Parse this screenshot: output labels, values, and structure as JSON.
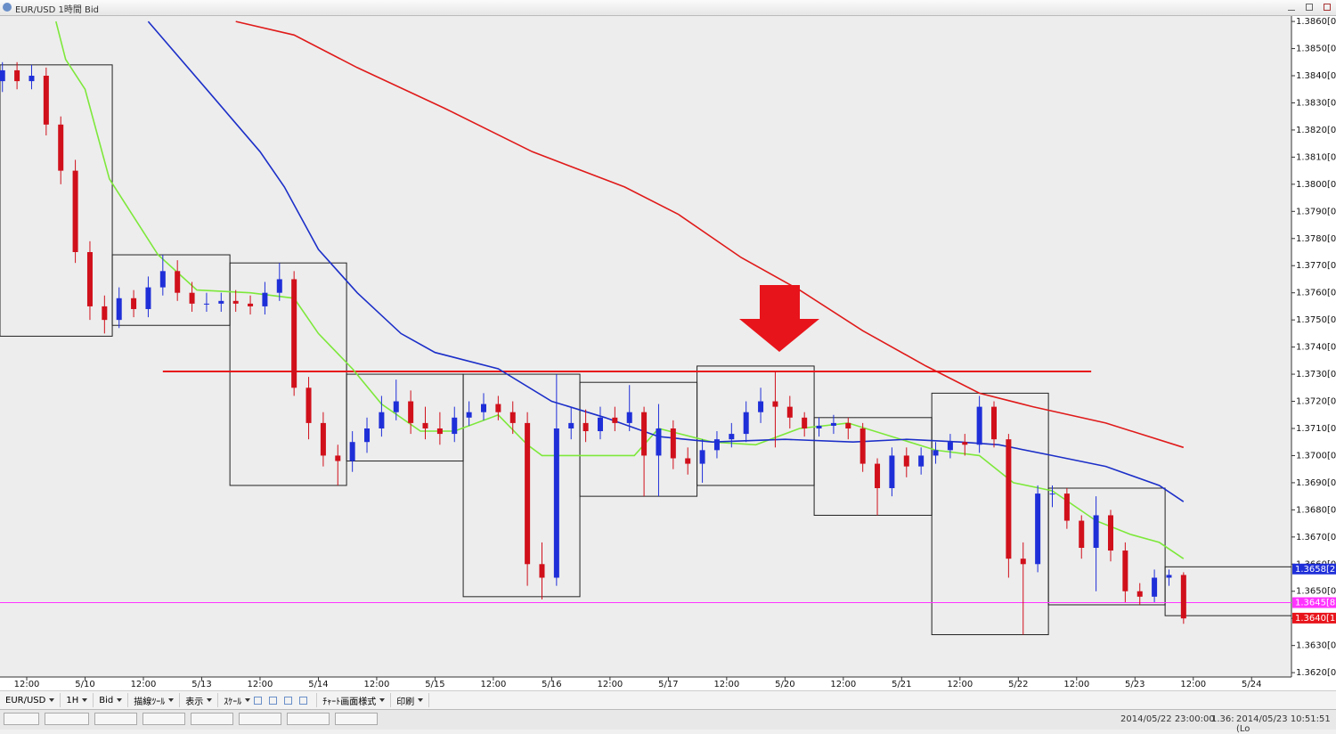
{
  "window": {
    "title": "EUR/USD 1時間 Bid",
    "toolbar": [
      "EUR/USD",
      "1H",
      "Bid",
      "描線ﾂｰﾙ",
      "表示",
      "ｽｹｰﾙ",
      "ﾁｬｰﾄ画面様式",
      "印刷"
    ],
    "status": [
      "2014/05/22 23:00:00",
      "1.36:",
      "2014/05/23 10:51:51 (Lo"
    ]
  },
  "chart_data": {
    "type": "candlestick",
    "xlim": [
      -5.5,
      260.2
    ],
    "ylim": [
      1.36184,
      1.3862
    ],
    "xticks": [
      {
        "value": 0,
        "label": "12:00"
      },
      {
        "value": 12,
        "label": "5/10"
      },
      {
        "value": 24,
        "label": "12:00"
      },
      {
        "value": 36,
        "label": "5/13"
      },
      {
        "value": 48,
        "label": "12:00"
      },
      {
        "value": 60,
        "label": "5/14"
      },
      {
        "value": 72,
        "label": "12:00"
      },
      {
        "value": 84,
        "label": "5/15"
      },
      {
        "value": 96,
        "label": "12:00"
      },
      {
        "value": 108,
        "label": "5/16"
      },
      {
        "value": 120,
        "label": "12:00"
      },
      {
        "value": 132,
        "label": "5/17"
      },
      {
        "value": 144,
        "label": "12:00"
      },
      {
        "value": 156,
        "label": "5/20"
      },
      {
        "value": 168,
        "label": "12:00"
      },
      {
        "value": 180,
        "label": "5/21"
      },
      {
        "value": 192,
        "label": "12:00"
      },
      {
        "value": 204,
        "label": "5/22"
      },
      {
        "value": 216,
        "label": "12:00"
      },
      {
        "value": 228,
        "label": "5/23"
      },
      {
        "value": 240,
        "label": "12:00"
      },
      {
        "value": 252,
        "label": "5/24"
      }
    ],
    "yticks": [
      {
        "value": 1.362,
        "label": "1.3620[0]"
      },
      {
        "value": 1.363,
        "label": "1.3630[0]"
      },
      {
        "value": 1.364,
        "label": "1.3640[0]"
      },
      {
        "value": 1.365,
        "label": "1.3650[0]"
      },
      {
        "value": 1.366,
        "label": "1.3660[0]"
      },
      {
        "value": 1.367,
        "label": "1.3670[0]"
      },
      {
        "value": 1.368,
        "label": "1.3680[0]"
      },
      {
        "value": 1.369,
        "label": "1.3690[0]"
      },
      {
        "value": 1.37,
        "label": "1.3700[0]"
      },
      {
        "value": 1.371,
        "label": "1.3710[0]"
      },
      {
        "value": 1.372,
        "label": "1.3720[0]"
      },
      {
        "value": 1.373,
        "label": "1.3730[0]"
      },
      {
        "value": 1.374,
        "label": "1.3740[0]"
      },
      {
        "value": 1.375,
        "label": "1.3750[0]"
      },
      {
        "value": 1.376,
        "label": "1.3760[0]"
      },
      {
        "value": 1.377,
        "label": "1.3770[0]"
      },
      {
        "value": 1.378,
        "label": "1.3780[0]"
      },
      {
        "value": 1.379,
        "label": "1.3790[0]"
      },
      {
        "value": 1.38,
        "label": "1.3800[0]"
      },
      {
        "value": 1.381,
        "label": "1.3810[0]"
      },
      {
        "value": 1.382,
        "label": "1.3820[0]"
      },
      {
        "value": 1.383,
        "label": "1.3830[0]"
      },
      {
        "value": 1.384,
        "label": "1.3840[0]"
      },
      {
        "value": 1.385,
        "label": "1.3850[0]"
      },
      {
        "value": 1.386,
        "label": "1.3860[0]"
      }
    ],
    "up_color": "#1f2fd8",
    "down_color": "#d0101b",
    "candles": {
      "x": [
        -5,
        -2,
        1,
        4,
        7,
        10,
        13,
        16,
        19,
        22,
        25,
        28,
        31,
        34,
        37,
        40,
        43,
        46,
        49,
        52,
        55,
        58,
        61,
        64,
        67,
        70,
        73,
        76,
        79,
        82,
        85,
        88,
        91,
        94,
        97,
        100,
        103,
        106,
        109,
        112,
        115,
        118,
        121,
        124,
        127,
        130,
        133,
        136,
        139,
        142,
        145,
        148,
        151,
        154,
        157,
        160,
        163,
        166,
        169,
        172,
        175,
        178,
        181,
        184,
        187,
        190,
        193,
        196,
        199,
        202,
        205,
        208,
        211,
        214,
        217,
        220,
        223,
        226,
        229,
        232,
        235,
        238
      ],
      "open": [
        1.3838,
        1.3842,
        1.3838,
        1.384,
        1.3822,
        1.3805,
        1.3775,
        1.3755,
        1.375,
        1.3758,
        1.3754,
        1.3762,
        1.3768,
        1.376,
        1.3756,
        1.3756,
        1.3757,
        1.3756,
        1.3755,
        1.376,
        1.3765,
        1.3725,
        1.3712,
        1.37,
        1.3698,
        1.3705,
        1.371,
        1.3716,
        1.372,
        1.3712,
        1.371,
        1.3708,
        1.3714,
        1.3716,
        1.3719,
        1.3716,
        1.3712,
        1.366,
        1.3655,
        1.371,
        1.3712,
        1.3709,
        1.3714,
        1.3712,
        1.3716,
        1.37,
        1.371,
        1.3699,
        1.3697,
        1.3702,
        1.3706,
        1.3708,
        1.3716,
        1.372,
        1.3718,
        1.3714,
        1.371,
        1.3711,
        1.3712,
        1.371,
        1.3697,
        1.3688,
        1.37,
        1.3696,
        1.37,
        1.3702,
        1.3705,
        1.3704,
        1.3718,
        1.3706,
        1.3662,
        1.366,
        1.3686,
        1.3686,
        1.3676,
        1.3666,
        1.3678,
        1.3665,
        1.365,
        1.3648,
        1.3655,
        1.3656
      ],
      "high": [
        1.3845,
        1.3845,
        1.3844,
        1.3843,
        1.3825,
        1.3809,
        1.3779,
        1.3759,
        1.3762,
        1.3761,
        1.3766,
        1.3774,
        1.3772,
        1.3764,
        1.376,
        1.376,
        1.3761,
        1.3759,
        1.3764,
        1.3771,
        1.3768,
        1.3729,
        1.3716,
        1.3704,
        1.3709,
        1.3714,
        1.3722,
        1.3728,
        1.3724,
        1.3718,
        1.3716,
        1.3718,
        1.372,
        1.3723,
        1.3722,
        1.372,
        1.3716,
        1.3668,
        1.373,
        1.3718,
        1.3717,
        1.3718,
        1.3718,
        1.3726,
        1.3718,
        1.3719,
        1.3713,
        1.3703,
        1.3706,
        1.3709,
        1.3712,
        1.372,
        1.3725,
        1.3731,
        1.3722,
        1.3716,
        1.3714,
        1.3715,
        1.3714,
        1.3712,
        1.3699,
        1.3703,
        1.3703,
        1.3703,
        1.3705,
        1.3708,
        1.3708,
        1.3722,
        1.372,
        1.3708,
        1.3668,
        1.3689,
        1.3689,
        1.3688,
        1.3678,
        1.3685,
        1.368,
        1.3668,
        1.3653,
        1.3658,
        1.3658,
        1.3657
      ],
      "low": [
        1.3834,
        1.3835,
        1.3835,
        1.3818,
        1.38,
        1.3771,
        1.375,
        1.3745,
        1.3747,
        1.3751,
        1.3751,
        1.3759,
        1.3757,
        1.3753,
        1.3753,
        1.3753,
        1.3753,
        1.3752,
        1.3752,
        1.3757,
        1.3722,
        1.3706,
        1.3696,
        1.3689,
        1.3694,
        1.3701,
        1.3707,
        1.3713,
        1.3708,
        1.3706,
        1.3704,
        1.3705,
        1.3711,
        1.3713,
        1.3713,
        1.3708,
        1.3652,
        1.3647,
        1.3652,
        1.3706,
        1.3705,
        1.3706,
        1.3709,
        1.3709,
        1.3685,
        1.3685,
        1.3695,
        1.3693,
        1.369,
        1.3699,
        1.3703,
        1.3705,
        1.3712,
        1.3703,
        1.371,
        1.3707,
        1.3707,
        1.3708,
        1.3706,
        1.3694,
        1.3678,
        1.3685,
        1.3692,
        1.3693,
        1.3697,
        1.3699,
        1.37,
        1.3701,
        1.3703,
        1.3655,
        1.3634,
        1.3657,
        1.3681,
        1.3673,
        1.3662,
        1.365,
        1.3661,
        1.3646,
        1.3645,
        1.3646,
        1.3652,
        1.3638
      ],
      "close": [
        1.3842,
        1.3838,
        1.384,
        1.3822,
        1.3805,
        1.3775,
        1.3755,
        1.375,
        1.3758,
        1.3754,
        1.3762,
        1.3768,
        1.376,
        1.3756,
        1.3756,
        1.3757,
        1.3756,
        1.3755,
        1.376,
        1.3765,
        1.3725,
        1.3712,
        1.37,
        1.3698,
        1.3705,
        1.371,
        1.3716,
        1.372,
        1.3712,
        1.371,
        1.3708,
        1.3714,
        1.3716,
        1.3719,
        1.3716,
        1.3712,
        1.366,
        1.3655,
        1.371,
        1.3712,
        1.3709,
        1.3714,
        1.3712,
        1.3716,
        1.37,
        1.371,
        1.3699,
        1.3697,
        1.3702,
        1.3706,
        1.3708,
        1.3716,
        1.372,
        1.3718,
        1.3714,
        1.371,
        1.3711,
        1.3712,
        1.371,
        1.3697,
        1.3688,
        1.37,
        1.3696,
        1.37,
        1.3702,
        1.3705,
        1.3704,
        1.3718,
        1.3706,
        1.3662,
        1.366,
        1.3686,
        1.3686,
        1.3676,
        1.3666,
        1.3678,
        1.3665,
        1.365,
        1.3648,
        1.3655,
        1.3656,
        1.364
      ]
    },
    "series": [
      {
        "color": "#7de83a",
        "x": [
          6,
          8,
          12,
          17,
          27,
          35,
          46,
          55,
          60,
          67,
          73,
          81,
          88,
          97,
          103,
          106,
          125,
          130,
          141,
          150,
          159,
          169,
          178,
          187,
          196,
          203,
          211,
          220,
          227,
          233,
          238
        ],
        "values": [
          1.386,
          1.3846,
          1.3835,
          1.3802,
          1.3774,
          1.3761,
          1.376,
          1.3758,
          1.3745,
          1.3732,
          1.3719,
          1.3709,
          1.3709,
          1.3715,
          1.3704,
          1.37,
          1.37,
          1.371,
          1.3705,
          1.3704,
          1.371,
          1.3712,
          1.3707,
          1.3702,
          1.37,
          1.369,
          1.3687,
          1.3676,
          1.3671,
          1.3668,
          1.3662
        ]
      },
      {
        "color": "#1c2fc8",
        "x": [
          25,
          37,
          48,
          53,
          60,
          68,
          77,
          84,
          97,
          108,
          119,
          130,
          141,
          156,
          170,
          181,
          192,
          200,
          211,
          222,
          233,
          238
        ],
        "values": [
          1.386,
          1.3835,
          1.3812,
          1.3799,
          1.3776,
          1.376,
          1.3745,
          1.3738,
          1.3732,
          1.372,
          1.3714,
          1.3707,
          1.3705,
          1.3706,
          1.3705,
          1.3706,
          1.3705,
          1.3704,
          1.37,
          1.3696,
          1.3689,
          1.3683
        ]
      },
      {
        "color": "#e01a1a",
        "x": [
          43,
          55,
          68,
          86,
          104,
          123,
          134,
          147,
          159,
          172,
          185,
          196,
          207,
          222,
          238
        ],
        "values": [
          1.386,
          1.3855,
          1.3843,
          1.3828,
          1.3812,
          1.3799,
          1.3789,
          1.3773,
          1.3761,
          1.3746,
          1.3733,
          1.3723,
          1.3718,
          1.3712,
          1.3703
        ]
      }
    ],
    "ranges": [
      {
        "x": [
          -5.5,
          17.6
        ],
        "high": 1.3844,
        "low": 1.3744
      },
      {
        "x": [
          17.6,
          41.8
        ],
        "high": 1.3774,
        "low": 1.3748
      },
      {
        "x": [
          41.8,
          65.8
        ],
        "high": 1.3771,
        "low": 1.3689
      },
      {
        "x": [
          65.8,
          89.8
        ],
        "high": 1.373,
        "low": 1.3698
      },
      {
        "x": [
          89.8,
          113.8
        ],
        "high": 1.373,
        "low": 1.3648
      },
      {
        "x": [
          113.8,
          137.9
        ],
        "high": 1.3727,
        "low": 1.3685
      },
      {
        "x": [
          137.9,
          162
        ],
        "high": 1.3733,
        "low": 1.3689
      },
      {
        "x": [
          162,
          186.2
        ],
        "high": 1.3714,
        "low": 1.3678
      },
      {
        "x": [
          186.2,
          210.2
        ],
        "high": 1.3723,
        "low": 1.3634
      },
      {
        "x": [
          210.2,
          234.2
        ],
        "high": 1.3688,
        "low": 1.3645
      },
      {
        "x": [
          234.2,
          260.2
        ],
        "high": 1.3659,
        "low": 1.3641
      }
    ],
    "levels": [
      {
        "value": 1.3731,
        "color": "#e8141b",
        "x": [
          28,
          219
        ]
      },
      {
        "value": 1.36458,
        "color": "#ff33ff",
        "x": [
          -5.5,
          260.2
        ]
      }
    ],
    "price_markers": [
      {
        "value": 1.36582,
        "label": "1.3658[2",
        "color": "#1f2fd8"
      },
      {
        "value": 1.36458,
        "label": "1.3645[8",
        "color": "#ff33ff"
      },
      {
        "value": 1.36401,
        "label": "1.3640[1",
        "color": "#e8141b"
      }
    ]
  }
}
